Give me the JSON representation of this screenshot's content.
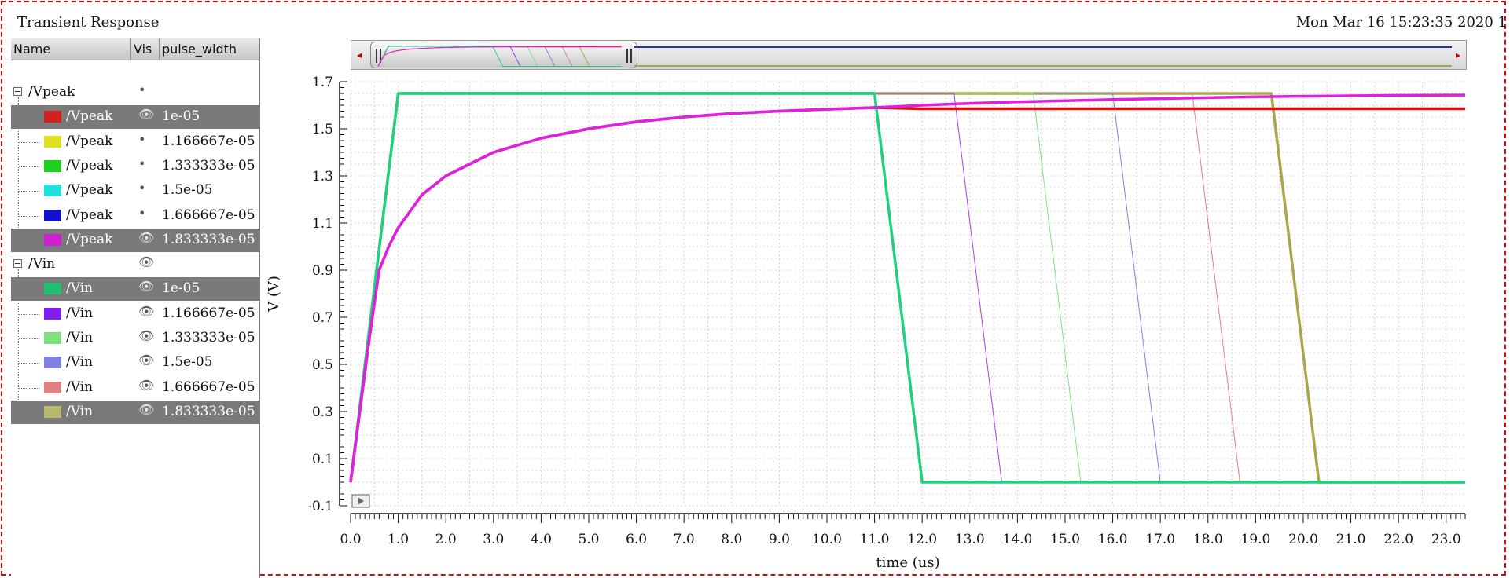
{
  "window": {
    "title": "Transient Response",
    "timestamp": "Mon Mar 16 15:23:35 2020  1"
  },
  "legend": {
    "headers": {
      "name": "Name",
      "vis": "Vis",
      "param": "pulse_width"
    },
    "groups": [
      {
        "label": "/Vpeak",
        "vis_icon": "dot-icon",
        "rows": [
          {
            "label": "/Vpeak",
            "param": "1e-05",
            "color": "#d02020",
            "selected": true,
            "vis_icon": "eye-icon"
          },
          {
            "label": "/Vpeak",
            "param": "1.166667e-05",
            "color": "#e0e020",
            "selected": false,
            "vis_icon": "dot-icon"
          },
          {
            "label": "/Vpeak",
            "param": "1.333333e-05",
            "color": "#20d020",
            "selected": false,
            "vis_icon": "dot-icon"
          },
          {
            "label": "/Vpeak",
            "param": "1.5e-05",
            "color": "#20e0e0",
            "selected": false,
            "vis_icon": "dot-icon"
          },
          {
            "label": "/Vpeak",
            "param": "1.666667e-05",
            "color": "#1010d0",
            "selected": false,
            "vis_icon": "dot-icon"
          },
          {
            "label": "/Vpeak",
            "param": "1.833333e-05",
            "color": "#d020d0",
            "selected": true,
            "vis_icon": "eye-icon"
          }
        ]
      },
      {
        "label": "/Vin",
        "vis_icon": "eye-icon",
        "rows": [
          {
            "label": "/Vin",
            "param": "1e-05",
            "color": "#20c070",
            "selected": true,
            "vis_icon": "eye-icon"
          },
          {
            "label": "/Vin",
            "param": "1.166667e-05",
            "color": "#8020f0",
            "selected": false,
            "vis_icon": "eye-icon"
          },
          {
            "label": "/Vin",
            "param": "1.333333e-05",
            "color": "#80e080",
            "selected": false,
            "vis_icon": "eye-icon"
          },
          {
            "label": "/Vin",
            "param": "1.5e-05",
            "color": "#8080e0",
            "selected": false,
            "vis_icon": "eye-icon"
          },
          {
            "label": "/Vin",
            "param": "1.666667e-05",
            "color": "#e08080",
            "selected": false,
            "vis_icon": "eye-icon"
          },
          {
            "label": "/Vin",
            "param": "1.833333e-05",
            "color": "#b8b870",
            "selected": true,
            "vis_icon": "eye-icon"
          }
        ]
      }
    ]
  },
  "scroll": {
    "left_arrow": "◂",
    "right_arrow": "▸"
  },
  "chart_data": {
    "type": "line",
    "title": "",
    "xlabel": "time (us)",
    "ylabel": "V (V)",
    "xlim": [
      0,
      23.4
    ],
    "ylim": [
      -0.1,
      1.7
    ],
    "x_ticks": [
      0,
      1,
      2,
      3,
      4,
      5,
      6,
      7,
      8,
      9,
      10,
      11,
      12,
      13,
      14,
      15,
      16,
      17,
      18,
      19,
      20,
      21,
      22,
      23
    ],
    "x_tick_labels": [
      "0.0",
      "1.0",
      "2.0",
      "3.0",
      "4.0",
      "5.0",
      "6.0",
      "7.0",
      "8.0",
      "9.0",
      "10.0",
      "11.0",
      "12.0",
      "13.0",
      "14.0",
      "15.0",
      "16.0",
      "17.0",
      "18.0",
      "19.0",
      "20.0",
      "21.0",
      "22.0",
      "23.0"
    ],
    "y_ticks": [
      -0.1,
      0.1,
      0.3,
      0.5,
      0.7,
      0.9,
      1.1,
      1.3,
      1.5,
      1.7
    ],
    "y_tick_labels": [
      "-0.1",
      "0.1",
      "0.3",
      "0.5",
      "0.7",
      "0.9",
      "1.1",
      "1.3",
      "1.5",
      "1.7"
    ],
    "grid": true,
    "series": [
      {
        "name": "/Vin 1.833333e-05",
        "color": "#a8a848",
        "width": 3.5,
        "x": [
          0,
          1,
          19.33,
          20.33,
          23.4
        ],
        "y": [
          0,
          1.65,
          1.65,
          0,
          0
        ]
      },
      {
        "name": "/Vin 1.666667e-05",
        "color": "#e08080",
        "width": 1,
        "x": [
          0,
          1,
          17.67,
          18.67,
          23.4
        ],
        "y": [
          0,
          1.65,
          1.65,
          0,
          0
        ]
      },
      {
        "name": "/Vin 1.5e-05",
        "color": "#8080e0",
        "width": 1,
        "x": [
          0,
          1,
          16,
          17,
          23.4
        ],
        "y": [
          0,
          1.65,
          1.65,
          0,
          0
        ]
      },
      {
        "name": "/Vin 1.333333e-05",
        "color": "#80e080",
        "width": 1,
        "x": [
          0,
          1,
          14.33,
          15.33,
          23.4
        ],
        "y": [
          0,
          1.65,
          1.65,
          0,
          0
        ]
      },
      {
        "name": "/Vin 1.166667e-05",
        "color": "#a040f0",
        "width": 1,
        "x": [
          0,
          1,
          12.67,
          13.67,
          23.4
        ],
        "y": [
          0,
          1.65,
          1.65,
          0,
          0
        ]
      },
      {
        "name": "/Vin 1e-05",
        "color": "#20d080",
        "width": 3.5,
        "x": [
          0,
          1,
          11,
          12,
          23.4
        ],
        "y": [
          0,
          1.65,
          1.65,
          0,
          0
        ]
      },
      {
        "name": "/Vpeak 1e-05",
        "color": "#e01010",
        "width": 3.5,
        "x": [
          0,
          0.4,
          0.6,
          0.8,
          1,
          1.5,
          2,
          3,
          4,
          5,
          6,
          7,
          8,
          9,
          10,
          11,
          12,
          13,
          23.4
        ],
        "y": [
          0,
          0.62,
          0.9,
          1.0,
          1.08,
          1.22,
          1.3,
          1.4,
          1.46,
          1.5,
          1.53,
          1.55,
          1.565,
          1.575,
          1.583,
          1.59,
          1.585,
          1.585,
          1.585
        ]
      },
      {
        "name": "/Vpeak 1.833333e-05",
        "color": "#e020e0",
        "width": 3.5,
        "x": [
          0,
          0.4,
          0.6,
          0.8,
          1,
          1.5,
          2,
          3,
          4,
          5,
          6,
          7,
          8,
          9,
          10,
          11,
          12,
          13,
          14,
          15,
          16,
          17,
          18,
          19,
          20,
          21,
          22,
          23.4
        ],
        "y": [
          0,
          0.62,
          0.9,
          1.0,
          1.08,
          1.22,
          1.3,
          1.4,
          1.46,
          1.5,
          1.53,
          1.55,
          1.565,
          1.575,
          1.583,
          1.59,
          1.6,
          1.608,
          1.614,
          1.619,
          1.624,
          1.628,
          1.632,
          1.636,
          1.638,
          1.64,
          1.642,
          1.643
        ]
      }
    ]
  }
}
